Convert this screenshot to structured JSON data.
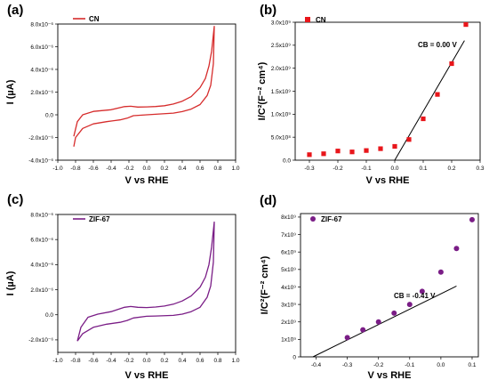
{
  "chart_data": [
    {
      "panel_label": "(a)",
      "type": "line",
      "curve": "cyclic-voltammogram",
      "color": "#d62c2c",
      "legend": "CN",
      "xlabel": "V vs RHE",
      "ylabel": "I (µA)",
      "xlim": [
        -1.0,
        1.0
      ],
      "ylim": [
        -4e-06,
        8e-06
      ],
      "x_ticks": [
        "-1.0",
        "-0.8",
        "-0.6",
        "-0.4",
        "-0.2",
        "0.0",
        "0.2",
        "0.4",
        "0.6",
        "0.8",
        "1.0"
      ],
      "y_ticks": [
        "-4.0x10⁻⁶",
        "-2.0x10⁻⁶",
        "0.0",
        "2.0x10⁻⁶",
        "4.0x10⁻⁶",
        "6.0x10⁻⁶",
        "8.0x10⁻⁶"
      ],
      "series": [
        {
          "values_upper": [
            [
              -0.82,
              -1.9e-06
            ],
            [
              -0.78,
              -6e-07
            ],
            [
              -0.72,
              0.0
            ],
            [
              -0.6,
              3e-07
            ],
            [
              -0.4,
              4.5e-07
            ],
            [
              -0.25,
              7.2e-07
            ],
            [
              -0.18,
              7.5e-07
            ],
            [
              -0.1,
              6.8e-07
            ],
            [
              0.0,
              7e-07
            ],
            [
              0.1,
              7.3e-07
            ],
            [
              0.2,
              8e-07
            ],
            [
              0.3,
              9.5e-07
            ],
            [
              0.4,
              1.2e-06
            ],
            [
              0.5,
              1.6e-06
            ],
            [
              0.6,
              2.4e-06
            ],
            [
              0.66,
              3.2e-06
            ],
            [
              0.7,
              4.3e-06
            ],
            [
              0.73,
              5.6e-06
            ],
            [
              0.76,
              7.8e-06
            ]
          ],
          "values_lower": [
            [
              0.76,
              7.8e-06
            ],
            [
              0.75,
              4.5e-06
            ],
            [
              0.72,
              2.6e-06
            ],
            [
              0.68,
              1.7e-06
            ],
            [
              0.6,
              9e-07
            ],
            [
              0.5,
              5e-07
            ],
            [
              0.4,
              2.8e-07
            ],
            [
              0.3,
              1.5e-07
            ],
            [
              0.1,
              5e-08
            ],
            [
              0.0,
              0.0
            ],
            [
              -0.15,
              -8e-08
            ],
            [
              -0.22,
              -3e-07
            ],
            [
              -0.3,
              -4.5e-07
            ],
            [
              -0.45,
              -6e-07
            ],
            [
              -0.6,
              -8e-07
            ],
            [
              -0.72,
              -1.2e-06
            ],
            [
              -0.8,
              -2e-06
            ],
            [
              -0.82,
              -2.8e-06
            ]
          ]
        }
      ]
    },
    {
      "panel_label": "(b)",
      "type": "scatter",
      "marker": "square",
      "color": "#e8161b",
      "legend": "CN",
      "xlabel": "V vs RHE",
      "ylabel": "I/C²(F⁻² cm⁴)",
      "xlim": [
        -0.35,
        0.3
      ],
      "ylim": [
        0,
        3000000000.0
      ],
      "x_ticks": [
        "-0.3",
        "-0.2",
        "-0.1",
        "0.0",
        "0.1",
        "0.2",
        "0.3"
      ],
      "y_ticks": [
        "0.0",
        "5.0x10⁸",
        "1.0x10⁹",
        "1.5x10⁹",
        "2.0x10⁹",
        "2.5x10⁹",
        "3.0x10⁹"
      ],
      "x": [
        -0.3,
        -0.25,
        -0.2,
        -0.15,
        -0.1,
        -0.05,
        0.0,
        0.05,
        0.1,
        0.15,
        0.2,
        0.25
      ],
      "y": [
        120000000.0,
        140000000.0,
        200000000.0,
        180000000.0,
        210000000.0,
        250000000.0,
        300000000.0,
        450000000.0,
        900000000.0,
        1430000000.0,
        2100000000.0,
        2950000000.0
      ],
      "fit_line": {
        "x": [
          0.0,
          0.245
        ],
        "y": [
          0.0,
          2600000000.0
        ]
      },
      "annotation": "CB = 0.00 V"
    },
    {
      "panel_label": "(c)",
      "type": "line",
      "curve": "cyclic-voltammogram",
      "color": "#7a1d86",
      "legend": "ZIF-67",
      "xlabel": "V vs RHE",
      "ylabel": "I (µA)",
      "xlim": [
        -1.0,
        1.0
      ],
      "ylim": [
        -3e-06,
        8e-06
      ],
      "x_ticks": [
        "-1.0",
        "-0.8",
        "-0.6",
        "-0.4",
        "-0.2",
        "0.0",
        "0.2",
        "0.4",
        "0.6",
        "0.8",
        "1.0"
      ],
      "y_ticks": [
        "-2.0x10⁻⁶",
        "0.0",
        "2.0x10⁻⁶",
        "4.0x10⁻⁶",
        "6.0x10⁻⁶",
        "8.0x10⁻⁶"
      ],
      "series": [
        {
          "values_upper": [
            [
              -0.78,
              -2.1e-06
            ],
            [
              -0.74,
              -1e-06
            ],
            [
              -0.66,
              -2e-07
            ],
            [
              -0.55,
              5e-08
            ],
            [
              -0.4,
              2.5e-07
            ],
            [
              -0.25,
              6e-07
            ],
            [
              -0.18,
              6.6e-07
            ],
            [
              -0.1,
              6e-07
            ],
            [
              0.0,
              5.8e-07
            ],
            [
              0.1,
              6.2e-07
            ],
            [
              0.2,
              7e-07
            ],
            [
              0.3,
              8.5e-07
            ],
            [
              0.4,
              1.1e-06
            ],
            [
              0.5,
              1.5e-06
            ],
            [
              0.6,
              2.2e-06
            ],
            [
              0.66,
              3e-06
            ],
            [
              0.7,
              4e-06
            ],
            [
              0.73,
              5.4e-06
            ],
            [
              0.76,
              7.4e-06
            ]
          ],
          "values_lower": [
            [
              0.76,
              7.4e-06
            ],
            [
              0.75,
              4.2e-06
            ],
            [
              0.72,
              2.3e-06
            ],
            [
              0.68,
              1.4e-06
            ],
            [
              0.6,
              6e-07
            ],
            [
              0.5,
              2.5e-07
            ],
            [
              0.4,
              5e-08
            ],
            [
              0.3,
              -5e-08
            ],
            [
              0.1,
              -1e-07
            ],
            [
              0.0,
              -1.2e-07
            ],
            [
              -0.15,
              -2.5e-07
            ],
            [
              -0.22,
              -4.5e-07
            ],
            [
              -0.3,
              -6e-07
            ],
            [
              -0.45,
              -7.5e-07
            ],
            [
              -0.6,
              -1e-06
            ],
            [
              -0.72,
              -1.5e-06
            ],
            [
              -0.78,
              -2.1e-06
            ]
          ]
        }
      ]
    },
    {
      "panel_label": "(d)",
      "type": "scatter",
      "marker": "circle",
      "color": "#7a1d86",
      "legend": "ZIF-67",
      "xlabel": "V vs RHE",
      "ylabel": "I/C²(F⁻² cm⁴)",
      "xlim": [
        -0.45,
        0.12
      ],
      "ylim": [
        0,
        8200000000.0
      ],
      "x_ticks": [
        "-0.4",
        "-0.3",
        "-0.2",
        "-0.1",
        "0.0",
        "0.1"
      ],
      "y_ticks": [
        "0",
        "1x10⁹",
        "2x10⁹",
        "3x10⁹",
        "4x10⁹",
        "5x10⁹",
        "6x10⁹",
        "7x10⁹",
        "8x10⁹"
      ],
      "x": [
        -0.3,
        -0.25,
        -0.2,
        -0.15,
        -0.1,
        -0.06,
        0.0,
        0.05,
        0.1
      ],
      "y": [
        1100000000.0,
        1550000000.0,
        2000000000.0,
        2500000000.0,
        3000000000.0,
        3750000000.0,
        4850000000.0,
        6200000000.0,
        7850000000.0
      ],
      "fit_line": {
        "x": [
          -0.41,
          0.05
        ],
        "y": [
          0.0,
          4050000000.0
        ]
      },
      "annotation": "CB = -0.41 V"
    }
  ]
}
